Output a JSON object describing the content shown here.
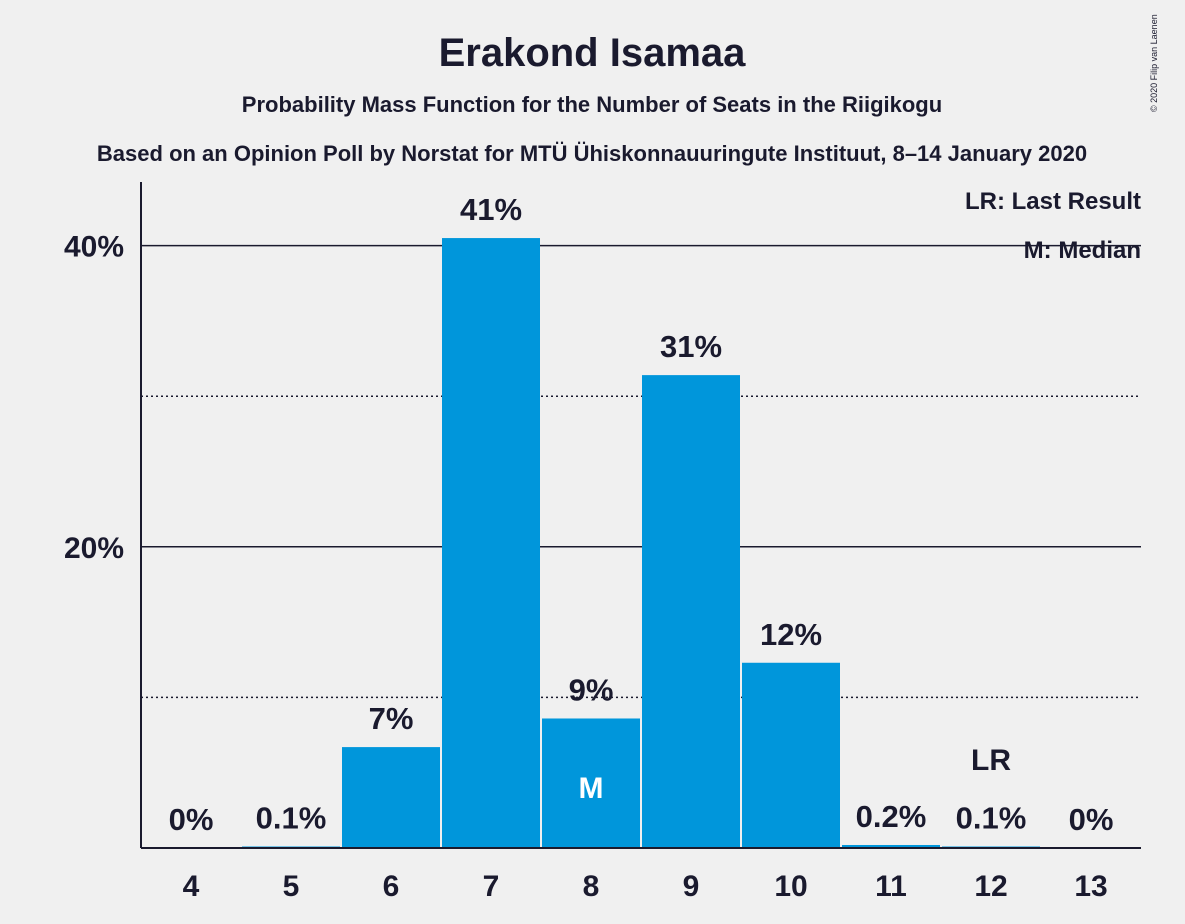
{
  "copyright": "© 2020 Filip van Laenen",
  "chart_data": {
    "type": "bar",
    "title": "Erakond Isamaa",
    "subtitle": "Probability Mass Function for the Number of Seats in the Riigikogu",
    "subtitle2": "Based on an Opinion Poll by Norstat for MTÜ Ühiskonnauuringute Instituut, 8–14 January 2020",
    "categories": [
      "4",
      "5",
      "6",
      "7",
      "8",
      "9",
      "10",
      "11",
      "12",
      "13"
    ],
    "values": [
      0,
      0.1,
      6.7,
      40.5,
      8.6,
      31.4,
      12.3,
      0.2,
      0.1,
      0
    ],
    "data_labels": [
      "0%",
      "0.1%",
      "7%",
      "41%",
      "9%",
      "31%",
      "12%",
      "0.2%",
      "0.1%",
      "0%"
    ],
    "ylim": [
      0,
      44
    ],
    "yticks": [
      {
        "value": 20,
        "label": "20%"
      },
      {
        "value": 40,
        "label": "40%"
      }
    ],
    "minor_gridlines": [
      10,
      30
    ],
    "bar_color": "#0096db",
    "median_category": "8",
    "median_marker": "M",
    "last_result_category": "12",
    "last_result_marker": "LR",
    "legend": {
      "placement": "top-right",
      "items": [
        "LR: Last Result",
        "M: Median"
      ]
    }
  }
}
